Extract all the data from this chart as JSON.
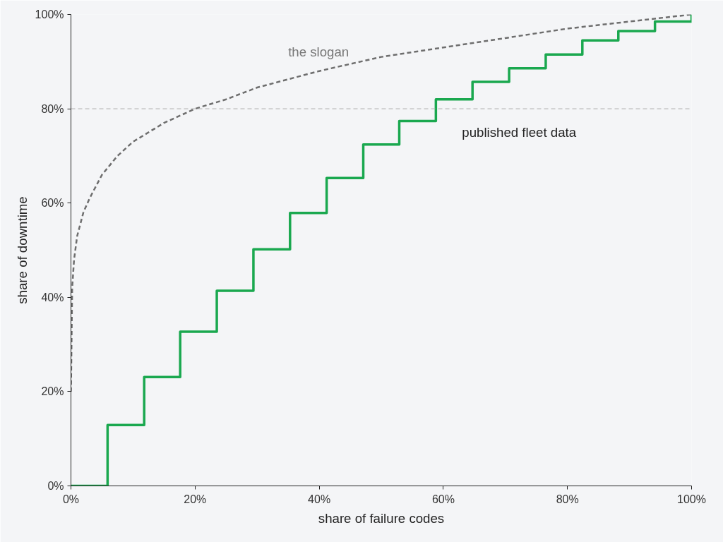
{
  "chart_data": {
    "type": "line",
    "xlabel": "share of failure codes",
    "ylabel": "share of downtime",
    "xlim": [
      0,
      100
    ],
    "ylim": [
      0,
      100
    ],
    "xticks": [
      {
        "value": 0,
        "label": "0%"
      },
      {
        "value": 20,
        "label": "20%"
      },
      {
        "value": 40,
        "label": "40%"
      },
      {
        "value": 60,
        "label": "60%"
      },
      {
        "value": 80,
        "label": "80%"
      },
      {
        "value": 100,
        "label": "100%"
      }
    ],
    "yticks": [
      {
        "value": 0,
        "label": "0%"
      },
      {
        "value": 20,
        "label": "20%"
      },
      {
        "value": 40,
        "label": "40%"
      },
      {
        "value": 60,
        "label": "60%"
      },
      {
        "value": 80,
        "label": "80%"
      },
      {
        "value": 100,
        "label": "100%"
      }
    ],
    "grid": false,
    "series": [
      {
        "name": "the slogan",
        "color": "#6e6e6e",
        "line_style": "dashed",
        "x": [
          0,
          0.2,
          0.5,
          1,
          2,
          3,
          5,
          7.5,
          10,
          15,
          20,
          25,
          30,
          40,
          50,
          60,
          70,
          80,
          90,
          100
        ],
        "values": [
          20,
          42,
          48,
          53,
          58,
          61,
          66,
          70,
          73,
          77,
          80,
          82,
          84.5,
          88,
          91,
          93,
          95,
          97,
          98.5,
          100
        ]
      },
      {
        "name": "published fleet data",
        "type": "step",
        "color": "#1aa84f",
        "line_style": "solid",
        "x": [
          0,
          5.9,
          11.8,
          17.6,
          23.5,
          29.4,
          35.3,
          41.2,
          47.1,
          52.9,
          58.8,
          64.7,
          70.6,
          76.5,
          82.4,
          88.2,
          94.1,
          100
        ],
        "values": [
          0,
          12.9,
          23.1,
          32.7,
          41.4,
          50.2,
          57.9,
          65.3,
          72.4,
          77.4,
          82.0,
          85.7,
          88.6,
          91.5,
          94.5,
          96.5,
          98.5,
          100
        ]
      }
    ],
    "ref_lines": [
      {
        "axis": "y",
        "value": 80,
        "color": "#aaaaaa",
        "line_style": "dashed"
      }
    ]
  }
}
